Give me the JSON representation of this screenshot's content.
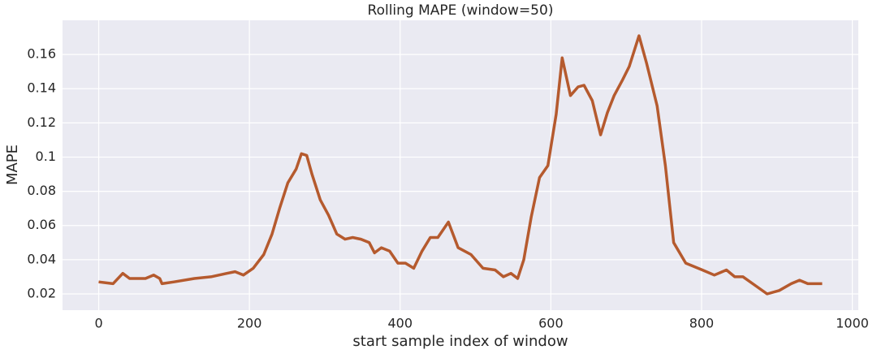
{
  "chart_data": {
    "type": "line",
    "title": "Rolling MAPE (window=50)",
    "x_label": "start sample index of window",
    "y_label": "MAPE",
    "x": [
      0,
      19,
      32,
      41,
      62,
      73,
      81,
      84,
      100,
      127,
      149,
      170,
      181,
      192,
      205,
      219,
      230,
      240,
      251,
      262,
      269,
      276,
      283,
      294,
      305,
      316,
      327,
      337,
      348,
      359,
      366,
      375,
      386,
      397,
      407,
      418,
      429,
      440,
      450,
      464,
      477,
      494,
      510,
      526,
      537,
      547,
      556,
      564,
      574,
      585,
      596,
      607,
      615,
      626,
      636,
      644,
      655,
      666,
      675,
      684,
      695,
      704,
      717,
      727,
      741,
      752,
      763,
      779,
      801,
      817,
      833,
      844,
      855,
      871,
      887,
      903,
      919,
      930,
      941,
      960
    ],
    "series": [
      {
        "name": "Rolling MAPE",
        "color": "#b55a2e",
        "values": [
          0.027,
          0.026,
          0.032,
          0.029,
          0.029,
          0.031,
          0.029,
          0.026,
          0.027,
          0.029,
          0.03,
          0.032,
          0.033,
          0.031,
          0.035,
          0.043,
          0.055,
          0.07,
          0.085,
          0.093,
          0.102,
          0.101,
          0.09,
          0.075,
          0.066,
          0.055,
          0.052,
          0.053,
          0.052,
          0.05,
          0.044,
          0.047,
          0.045,
          0.038,
          0.038,
          0.035,
          0.045,
          0.053,
          0.053,
          0.062,
          0.047,
          0.043,
          0.035,
          0.034,
          0.03,
          0.032,
          0.029,
          0.04,
          0.065,
          0.088,
          0.095,
          0.125,
          0.158,
          0.136,
          0.141,
          0.142,
          0.133,
          0.113,
          0.126,
          0.136,
          0.145,
          0.153,
          0.171,
          0.155,
          0.13,
          0.095,
          0.05,
          0.038,
          0.034,
          0.031,
          0.034,
          0.03,
          0.03,
          0.025,
          0.02,
          0.022,
          0.026,
          0.028,
          0.026,
          0.026
        ]
      }
    ],
    "xlim": [
      -48,
      1008
    ],
    "ylim": [
      0.0105,
      0.18
    ],
    "xticks": [
      0,
      200,
      400,
      600,
      800,
      1000
    ],
    "yticks": [
      0.02,
      0.04,
      0.06,
      0.08,
      0.1,
      0.12,
      0.14,
      0.16
    ],
    "grid": true
  }
}
